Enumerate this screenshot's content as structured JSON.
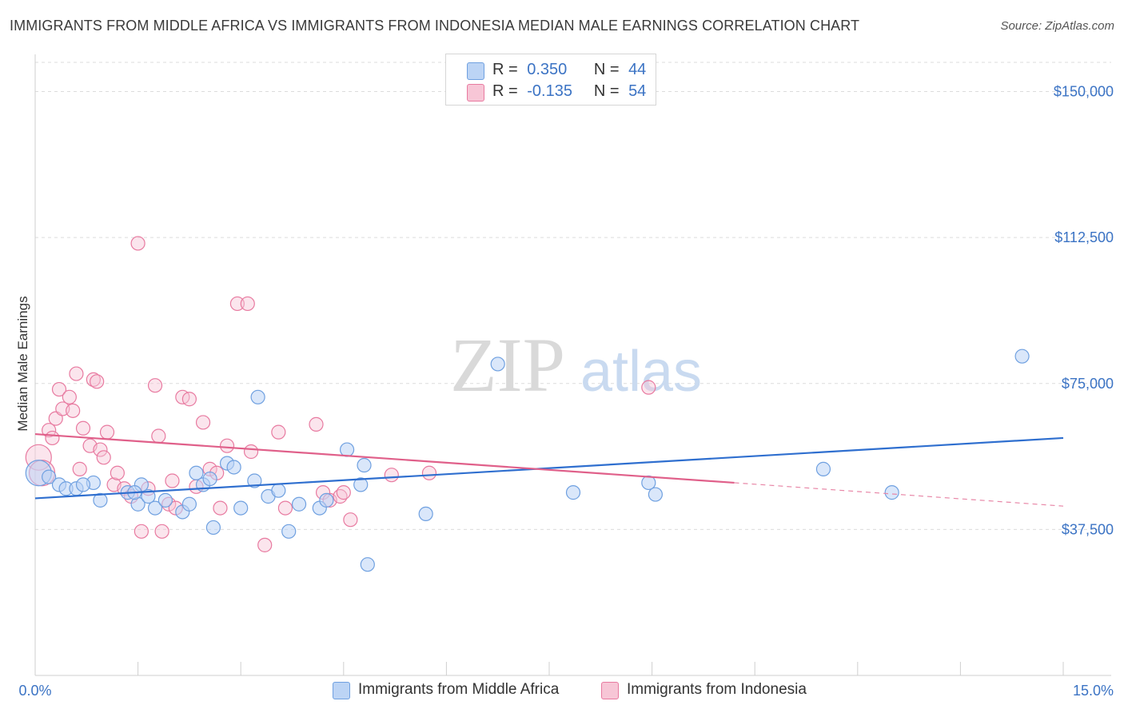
{
  "title": "IMMIGRANTS FROM MIDDLE AFRICA VS IMMIGRANTS FROM INDONESIA MEDIAN MALE EARNINGS CORRELATION CHART",
  "source": "Source: ZipAtlas.com",
  "watermark": {
    "zip": "ZIP",
    "atlas": "atlas"
  },
  "legend": {
    "r_label": "R =",
    "n_label": "N =",
    "series": [
      {
        "name": "Immigrants from Middle Africa",
        "r": "0.350",
        "n": "44",
        "color": "#6fa0e0",
        "fill": "#bcd4f5"
      },
      {
        "name": "Immigrants from Indonesia",
        "r": "-0.135",
        "n": "54",
        "color": "#e87aa0",
        "fill": "#f7c6d6"
      }
    ]
  },
  "chart_data": {
    "type": "scatter",
    "title": "IMMIGRANTS FROM MIDDLE AFRICA VS IMMIGRANTS FROM INDONESIA MEDIAN MALE EARNINGS CORRELATION CHART",
    "xlabel": "",
    "ylabel": "Median Male Earnings",
    "xlim": [
      0,
      15
    ],
    "ylim": [
      0,
      157500
    ],
    "x_tick_labels": [
      "0.0%",
      "15.0%"
    ],
    "y_ticks": [
      37500,
      75000,
      112500,
      150000
    ],
    "y_tick_labels": [
      "$37,500",
      "$75,000",
      "$112,500",
      "$150,000"
    ],
    "grid": true,
    "series": [
      {
        "name": "Immigrants from Middle Africa",
        "color": "#3b78d0",
        "points": [
          [
            0.05,
            52000
          ],
          [
            0.2,
            51000
          ],
          [
            0.35,
            49000
          ],
          [
            0.45,
            48000
          ],
          [
            0.6,
            48000
          ],
          [
            0.85,
            49500
          ],
          [
            0.95,
            45000
          ],
          [
            1.35,
            47000
          ],
          [
            1.5,
            44000
          ],
          [
            1.55,
            49000
          ],
          [
            1.65,
            46000
          ],
          [
            1.75,
            43000
          ],
          [
            1.9,
            45000
          ],
          [
            2.15,
            42000
          ],
          [
            2.25,
            44000
          ],
          [
            2.35,
            52000
          ],
          [
            2.45,
            49000
          ],
          [
            2.55,
            50500
          ],
          [
            2.6,
            38000
          ],
          [
            2.8,
            54500
          ],
          [
            2.9,
            53500
          ],
          [
            3.0,
            43000
          ],
          [
            3.2,
            50000
          ],
          [
            3.25,
            71500
          ],
          [
            3.4,
            46000
          ],
          [
            3.55,
            47500
          ],
          [
            3.7,
            37000
          ],
          [
            3.85,
            44000
          ],
          [
            4.15,
            43000
          ],
          [
            4.25,
            45000
          ],
          [
            4.55,
            58000
          ],
          [
            4.75,
            49000
          ],
          [
            4.8,
            54000
          ],
          [
            4.85,
            28500
          ],
          [
            5.7,
            41500
          ],
          [
            6.75,
            80000
          ],
          [
            7.85,
            47000
          ],
          [
            8.95,
            49500
          ],
          [
            9.05,
            46500
          ],
          [
            11.5,
            53000
          ],
          [
            12.5,
            47000
          ],
          [
            14.4,
            82000
          ],
          [
            1.45,
            47000
          ],
          [
            0.7,
            49000
          ]
        ],
        "trend": {
          "x0": 0.0,
          "y0": 45500,
          "x1": 15.0,
          "y1": 61000
        }
      },
      {
        "name": "Immigrants from Indonesia",
        "color": "#e0608a",
        "points": [
          [
            0.05,
            56000
          ],
          [
            0.1,
            52000
          ],
          [
            0.2,
            63000
          ],
          [
            0.3,
            66000
          ],
          [
            0.35,
            73500
          ],
          [
            0.4,
            68500
          ],
          [
            0.5,
            71500
          ],
          [
            0.55,
            68000
          ],
          [
            0.6,
            77500
          ],
          [
            0.65,
            53000
          ],
          [
            0.7,
            63500
          ],
          [
            0.8,
            59000
          ],
          [
            0.85,
            76000
          ],
          [
            0.9,
            75500
          ],
          [
            0.95,
            58000
          ],
          [
            1.0,
            56000
          ],
          [
            1.05,
            62500
          ],
          [
            1.15,
            49000
          ],
          [
            1.2,
            52000
          ],
          [
            1.3,
            48000
          ],
          [
            1.4,
            46000
          ],
          [
            1.5,
            111000
          ],
          [
            1.55,
            37000
          ],
          [
            1.65,
            48000
          ],
          [
            1.75,
            74500
          ],
          [
            1.8,
            61500
          ],
          [
            1.85,
            37000
          ],
          [
            1.95,
            44000
          ],
          [
            2.0,
            50000
          ],
          [
            2.05,
            43000
          ],
          [
            2.15,
            71500
          ],
          [
            2.25,
            71000
          ],
          [
            2.35,
            48500
          ],
          [
            2.45,
            65000
          ],
          [
            2.55,
            53000
          ],
          [
            2.65,
            52000
          ],
          [
            2.7,
            43000
          ],
          [
            2.8,
            59000
          ],
          [
            2.95,
            95500
          ],
          [
            3.1,
            95500
          ],
          [
            3.15,
            57500
          ],
          [
            3.35,
            33500
          ],
          [
            3.55,
            62500
          ],
          [
            3.65,
            43000
          ],
          [
            4.1,
            64500
          ],
          [
            4.2,
            47000
          ],
          [
            4.3,
            45000
          ],
          [
            4.45,
            46000
          ],
          [
            4.5,
            47000
          ],
          [
            4.6,
            40000
          ],
          [
            5.2,
            51500
          ],
          [
            5.75,
            52000
          ],
          [
            8.95,
            74000
          ],
          [
            0.25,
            61000
          ]
        ],
        "trend": {
          "x0": 0.0,
          "y0": 62000,
          "x1": 10.2,
          "y1": 49500
        },
        "trend_extension": {
          "x0": 10.2,
          "y0": 49500,
          "x1": 15.0,
          "y1": 43500
        }
      }
    ]
  }
}
